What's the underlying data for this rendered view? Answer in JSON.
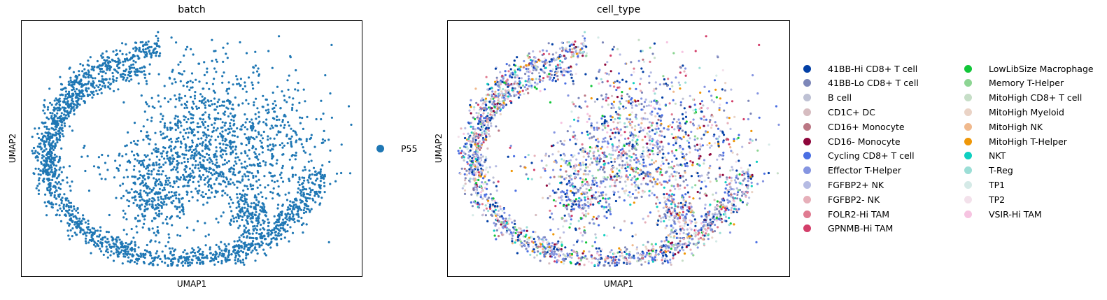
{
  "panels": [
    {
      "title": "batch",
      "xlabel": "UMAP1",
      "ylabel": "UMAP2",
      "legend": [
        {
          "label": "P55",
          "color": "#1f77b4"
        }
      ]
    },
    {
      "title": "cell_type",
      "xlabel": "UMAP1",
      "ylabel": "UMAP2",
      "legend": [
        {
          "label": "41BB-Hi CD8+ T cell",
          "color": "#023fa5"
        },
        {
          "label": "41BB-Lo CD8+ T cell",
          "color": "#7d87b9"
        },
        {
          "label": "B cell",
          "color": "#bec1d4"
        },
        {
          "label": "CD1C+ DC",
          "color": "#d6bcc0"
        },
        {
          "label": "CD16+ Monocyte",
          "color": "#bb7784"
        },
        {
          "label": "CD16- Monocyte",
          "color": "#8e063b"
        },
        {
          "label": "Cycling CD8+ T cell",
          "color": "#4a6fe3"
        },
        {
          "label": "Effector T-Helper",
          "color": "#8595e1"
        },
        {
          "label": "FGFBP2+ NK",
          "color": "#b5bbe3"
        },
        {
          "label": "FGFBP2- NK",
          "color": "#e6afb9"
        },
        {
          "label": "FOLR2-Hi TAM",
          "color": "#e07b91"
        },
        {
          "label": "GPNMB-Hi TAM",
          "color": "#d33f6a"
        },
        {
          "label": "LowLibSize Macrophage",
          "color": "#11c638"
        },
        {
          "label": "Memory T-Helper",
          "color": "#8dd593"
        },
        {
          "label": "MitoHigh CD8+ T cell",
          "color": "#c6dec7"
        },
        {
          "label": "MitoHigh Myeloid",
          "color": "#ead3c6"
        },
        {
          "label": "MitoHigh NK",
          "color": "#f0b98d"
        },
        {
          "label": "MitoHigh T-Helper",
          "color": "#ef9708"
        },
        {
          "label": "NKT",
          "color": "#0fcfc0"
        },
        {
          "label": "T-Reg",
          "color": "#9cded6"
        },
        {
          "label": "TP1",
          "color": "#d5eae7"
        },
        {
          "label": "TP2",
          "color": "#f3e1eb"
        },
        {
          "label": "VSIR-Hi TAM",
          "color": "#f6c4e1"
        }
      ]
    }
  ],
  "chart_data": [
    {
      "type": "scatter",
      "title": "batch",
      "xlabel": "UMAP1",
      "ylabel": "UMAP2",
      "ticks": "none",
      "grid": false,
      "legend_position": "right",
      "color_by": "batch",
      "series": [
        {
          "name": "P55",
          "color": "#1f77b4"
        }
      ],
      "point_count_estimate": 3500
    },
    {
      "type": "scatter",
      "title": "cell_type",
      "xlabel": "UMAP1",
      "ylabel": "UMAP2",
      "ticks": "none",
      "grid": false,
      "legend_position": "right",
      "legend_columns": 2,
      "color_by": "cell_type",
      "series": [
        {
          "name": "41BB-Hi CD8+ T cell",
          "color": "#023fa5"
        },
        {
          "name": "41BB-Lo CD8+ T cell",
          "color": "#7d87b9"
        },
        {
          "name": "B cell",
          "color": "#bec1d4"
        },
        {
          "name": "CD1C+ DC",
          "color": "#d6bcc0"
        },
        {
          "name": "CD16+ Monocyte",
          "color": "#bb7784"
        },
        {
          "name": "CD16- Monocyte",
          "color": "#8e063b"
        },
        {
          "name": "Cycling CD8+ T cell",
          "color": "#4a6fe3"
        },
        {
          "name": "Effector T-Helper",
          "color": "#8595e1"
        },
        {
          "name": "FGFBP2+ NK",
          "color": "#b5bbe3"
        },
        {
          "name": "FGFBP2- NK",
          "color": "#e6afb9"
        },
        {
          "name": "FOLR2-Hi TAM",
          "color": "#e07b91"
        },
        {
          "name": "GPNMB-Hi TAM",
          "color": "#d33f6a"
        },
        {
          "name": "LowLibSize Macrophage",
          "color": "#11c638"
        },
        {
          "name": "Memory T-Helper",
          "color": "#8dd593"
        },
        {
          "name": "MitoHigh CD8+ T cell",
          "color": "#c6dec7"
        },
        {
          "name": "MitoHigh Myeloid",
          "color": "#ead3c6"
        },
        {
          "name": "MitoHigh NK",
          "color": "#f0b98d"
        },
        {
          "name": "MitoHigh T-Helper",
          "color": "#ef9708"
        },
        {
          "name": "NKT",
          "color": "#0fcfc0"
        },
        {
          "name": "T-Reg",
          "color": "#9cded6"
        },
        {
          "name": "TP1",
          "color": "#d5eae7"
        },
        {
          "name": "TP2",
          "color": "#f3e1eb"
        },
        {
          "name": "VSIR-Hi TAM",
          "color": "#f6c4e1"
        }
      ],
      "point_count_estimate": 3500
    }
  ]
}
